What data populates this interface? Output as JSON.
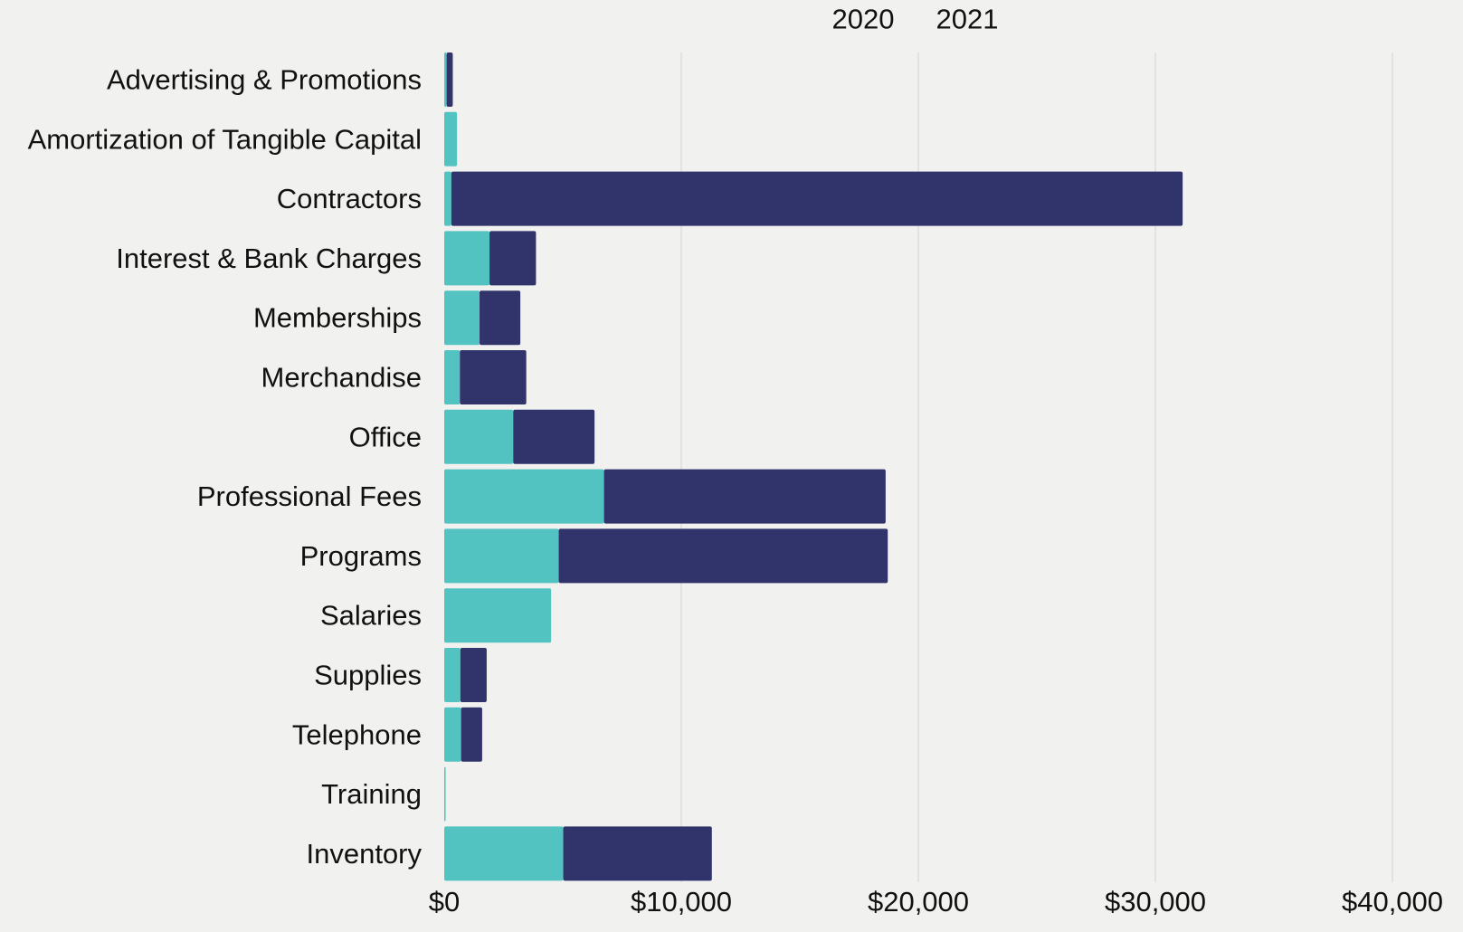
{
  "chart_data": {
    "type": "bar",
    "orientation": "horizontal",
    "stacked": true,
    "title": "",
    "xlabel": "",
    "ylabel": "",
    "xlim": [
      0,
      40000
    ],
    "x_ticks": [
      0,
      10000,
      20000,
      30000,
      40000
    ],
    "x_tick_labels": [
      "$0",
      "$10,000",
      "$20,000",
      "$30,000",
      "$40,000"
    ],
    "x_axis_position": "bottom",
    "grid": true,
    "legend_position": "top",
    "categories": [
      "Advertising & Promotions",
      "Amortization of Tangible Capital",
      "Contractors",
      "Interest & Bank Charges",
      "Memberships",
      "Merchandise",
      "Office",
      "Professional Fees",
      "Programs",
      "Salaries",
      "Supplies",
      "Telephone",
      "Training",
      "Inventory"
    ],
    "series": [
      {
        "name": "2020",
        "color": "#52c3c1",
        "values": [
          100,
          540,
          300,
          1910,
          1490,
          660,
          2910,
          6740,
          4830,
          4510,
          680,
          710,
          60,
          5020
        ]
      },
      {
        "name": "2021",
        "color": "#31346b",
        "values": [
          260,
          0,
          30850,
          1960,
          1720,
          2800,
          3430,
          11880,
          13880,
          0,
          1110,
          890,
          0,
          6270
        ]
      }
    ]
  }
}
